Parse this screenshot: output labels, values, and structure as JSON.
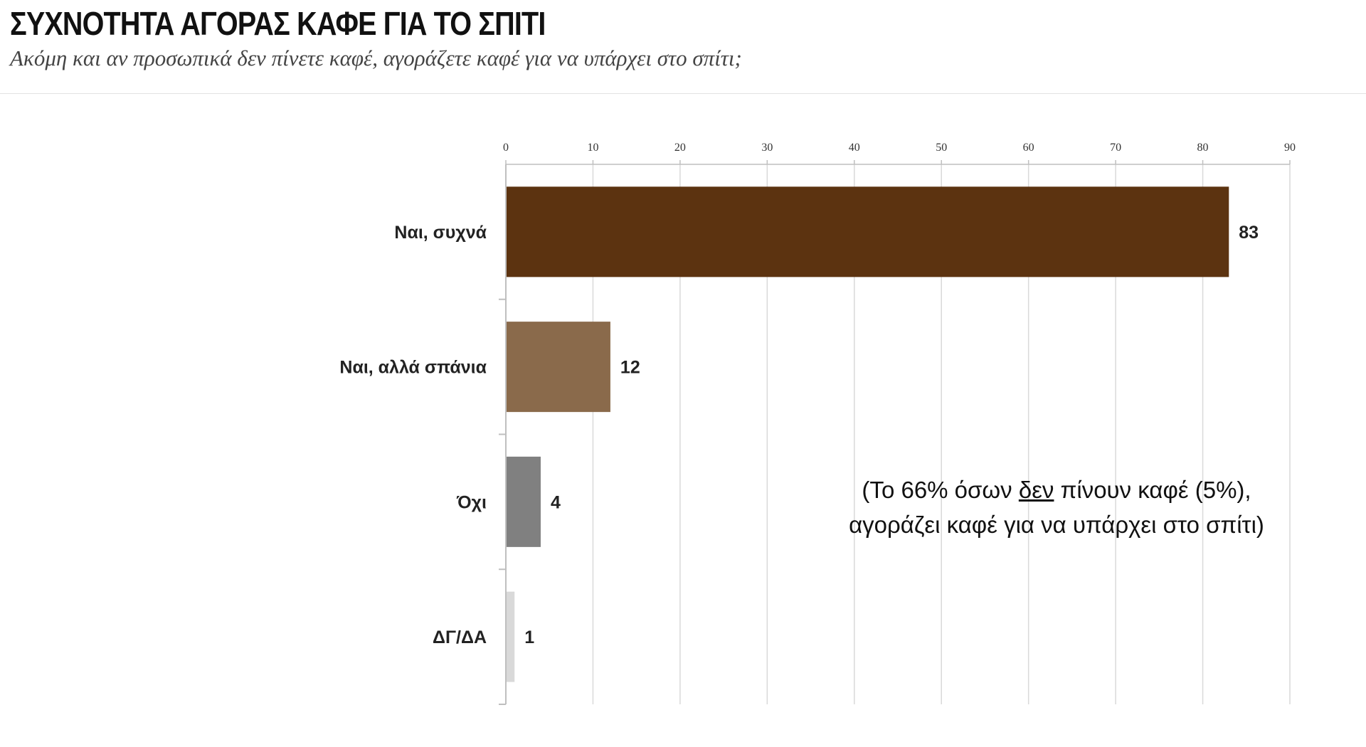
{
  "header": {
    "title": "ΣΥΧΝΟΤΗΤΑ ΑΓΟΡΑΣ ΚΑΦΕ ΓΙΑ ΤΟ ΣΠΙΤΙ",
    "subtitle": "Ακόμη και αν προσωπικά δεν πίνετε καφέ, αγοράζετε καφέ για να υπάρχει στο σπίτι;"
  },
  "note": {
    "line1_before": "(Το 66% όσων ",
    "line1_underlined": "δεν",
    "line1_after": " πίνουν καφέ (5%),",
    "line2": "αγοράζει καφέ για να υπάρχει στο σπίτι)"
  },
  "chart_data": {
    "type": "bar",
    "orientation": "horizontal",
    "categories": [
      "Ναι, συχνά",
      "Ναι, αλλά σπάνια",
      "Όχι",
      "ΔΓ/ΔΑ"
    ],
    "values": [
      83,
      12,
      4,
      1
    ],
    "colors": [
      "#5c3310",
      "#8a6a4b",
      "#808080",
      "#d9d9d9"
    ],
    "xlim": [
      0,
      90
    ],
    "xticks": [
      0,
      10,
      20,
      30,
      40,
      50,
      60,
      70,
      80,
      90
    ],
    "xaxis_position": "top",
    "grid": true,
    "grid_color": "#d9d9d9"
  }
}
